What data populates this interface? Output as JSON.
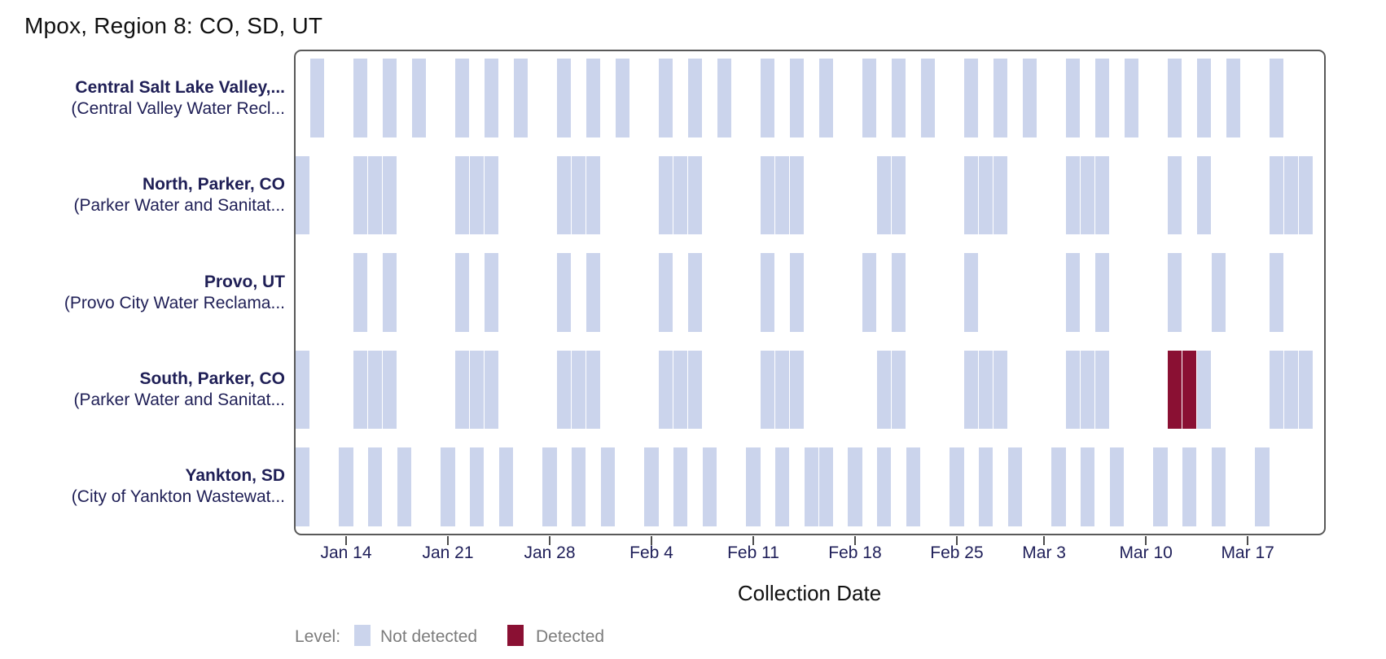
{
  "title": "Mpox, Region 8: CO, SD, UT",
  "legend": {
    "title": "Level:",
    "entries": [
      {
        "label": "Not detected",
        "color": "#cbd4ec"
      },
      {
        "label": "Detected",
        "color": "#8a1033"
      }
    ]
  },
  "chart_data": {
    "type": "heatmap",
    "subtype": "detection-tile-timeline",
    "title": "Mpox, Region 8: CO, SD, UT",
    "xlabel": "Collection Date",
    "x_domain": [
      "Jan 10",
      "Mar 22"
    ],
    "x_ticks": [
      {
        "label": "Jan 14",
        "t": 0
      },
      {
        "label": "Jan 21",
        "t": 7
      },
      {
        "label": "Jan 28",
        "t": 14
      },
      {
        "label": "Feb 4",
        "t": 21
      },
      {
        "label": "Feb 11",
        "t": 28
      },
      {
        "label": "Feb 18",
        "t": 35
      },
      {
        "label": "Feb 25",
        "t": 42
      },
      {
        "label": "Mar 3",
        "t": 48
      },
      {
        "label": "Mar 10",
        "t": 55
      },
      {
        "label": "Mar 17",
        "t": 62
      }
    ],
    "status_legend": {
      "nd": "Not detected",
      "d": "Detected"
    },
    "series": [
      {
        "site": "Central Salt Lake Valley,...",
        "facility": "(Central Valley Water Recl...",
        "samples": [
          [
            "Jan 12",
            -2,
            "nd"
          ],
          [
            "Jan 15",
            1,
            "nd"
          ],
          [
            "Jan 17",
            3,
            "nd"
          ],
          [
            "Jan 19",
            5,
            "nd"
          ],
          [
            "Jan 22",
            8,
            "nd"
          ],
          [
            "Jan 24",
            10,
            "nd"
          ],
          [
            "Jan 26",
            12,
            "nd"
          ],
          [
            "Jan 29",
            15,
            "nd"
          ],
          [
            "Jan 31",
            17,
            "nd"
          ],
          [
            "Feb 2",
            19,
            "nd"
          ],
          [
            "Feb 5",
            22,
            "nd"
          ],
          [
            "Feb 7",
            24,
            "nd"
          ],
          [
            "Feb 9",
            26,
            "nd"
          ],
          [
            "Feb 12",
            29,
            "nd"
          ],
          [
            "Feb 14",
            31,
            "nd"
          ],
          [
            "Feb 16",
            33,
            "nd"
          ],
          [
            "Feb 19",
            36,
            "nd"
          ],
          [
            "Feb 21",
            38,
            "nd"
          ],
          [
            "Feb 23",
            40,
            "nd"
          ],
          [
            "Feb 26",
            43,
            "nd"
          ],
          [
            "Feb 28",
            45,
            "nd"
          ],
          [
            "Mar 2",
            47,
            "nd"
          ],
          [
            "Mar 5",
            50,
            "nd"
          ],
          [
            "Mar 7",
            52,
            "nd"
          ],
          [
            "Mar 9",
            54,
            "nd"
          ],
          [
            "Mar 12",
            57,
            "nd"
          ],
          [
            "Mar 14",
            59,
            "nd"
          ],
          [
            "Mar 16",
            61,
            "nd"
          ],
          [
            "Mar 19",
            64,
            "nd"
          ]
        ]
      },
      {
        "site": "North, Parker, CO",
        "facility": "(Parker Water and Sanitat...",
        "samples": [
          [
            "Jan 11",
            -3,
            "nd"
          ],
          [
            "Jan 15",
            1,
            "nd"
          ],
          [
            "Jan 16",
            2,
            "nd"
          ],
          [
            "Jan 17",
            3,
            "nd"
          ],
          [
            "Jan 22",
            8,
            "nd"
          ],
          [
            "Jan 23",
            9,
            "nd"
          ],
          [
            "Jan 24",
            10,
            "nd"
          ],
          [
            "Jan 29",
            15,
            "nd"
          ],
          [
            "Jan 30",
            16,
            "nd"
          ],
          [
            "Jan 31",
            17,
            "nd"
          ],
          [
            "Feb 5",
            22,
            "nd"
          ],
          [
            "Feb 6",
            23,
            "nd"
          ],
          [
            "Feb 7",
            24,
            "nd"
          ],
          [
            "Feb 12",
            29,
            "nd"
          ],
          [
            "Feb 13",
            30,
            "nd"
          ],
          [
            "Feb 14",
            31,
            "nd"
          ],
          [
            "Feb 20",
            37,
            "nd"
          ],
          [
            "Feb 21",
            38,
            "nd"
          ],
          [
            "Feb 26",
            43,
            "nd"
          ],
          [
            "Feb 27",
            44,
            "nd"
          ],
          [
            "Feb 28",
            45,
            "nd"
          ],
          [
            "Mar 5",
            50,
            "nd"
          ],
          [
            "Mar 6",
            51,
            "nd"
          ],
          [
            "Mar 7",
            52,
            "nd"
          ],
          [
            "Mar 12",
            57,
            "nd"
          ],
          [
            "Mar 14",
            59,
            "nd"
          ],
          [
            "Mar 19",
            64,
            "nd"
          ],
          [
            "Mar 20",
            65,
            "nd"
          ],
          [
            "Mar 21",
            66,
            "nd"
          ]
        ]
      },
      {
        "site": "Provo, UT",
        "facility": "(Provo City Water Reclama...",
        "samples": [
          [
            "Jan 15",
            1,
            "nd"
          ],
          [
            "Jan 17",
            3,
            "nd"
          ],
          [
            "Jan 22",
            8,
            "nd"
          ],
          [
            "Jan 24",
            10,
            "nd"
          ],
          [
            "Jan 29",
            15,
            "nd"
          ],
          [
            "Jan 31",
            17,
            "nd"
          ],
          [
            "Feb 5",
            22,
            "nd"
          ],
          [
            "Feb 7",
            24,
            "nd"
          ],
          [
            "Feb 12",
            29,
            "nd"
          ],
          [
            "Feb 14",
            31,
            "nd"
          ],
          [
            "Feb 19",
            36,
            "nd"
          ],
          [
            "Feb 21",
            38,
            "nd"
          ],
          [
            "Feb 26",
            43,
            "nd"
          ],
          [
            "Mar 5",
            50,
            "nd"
          ],
          [
            "Mar 7",
            52,
            "nd"
          ],
          [
            "Mar 12",
            57,
            "nd"
          ],
          [
            "Mar 15",
            60,
            "nd"
          ],
          [
            "Mar 19",
            64,
            "nd"
          ]
        ]
      },
      {
        "site": "South, Parker, CO",
        "facility": "(Parker Water and Sanitat...",
        "samples": [
          [
            "Jan 11",
            -3,
            "nd"
          ],
          [
            "Jan 15",
            1,
            "nd"
          ],
          [
            "Jan 16",
            2,
            "nd"
          ],
          [
            "Jan 17",
            3,
            "nd"
          ],
          [
            "Jan 22",
            8,
            "nd"
          ],
          [
            "Jan 23",
            9,
            "nd"
          ],
          [
            "Jan 24",
            10,
            "nd"
          ],
          [
            "Jan 29",
            15,
            "nd"
          ],
          [
            "Jan 30",
            16,
            "nd"
          ],
          [
            "Jan 31",
            17,
            "nd"
          ],
          [
            "Feb 5",
            22,
            "nd"
          ],
          [
            "Feb 6",
            23,
            "nd"
          ],
          [
            "Feb 7",
            24,
            "nd"
          ],
          [
            "Feb 12",
            29,
            "nd"
          ],
          [
            "Feb 13",
            30,
            "nd"
          ],
          [
            "Feb 14",
            31,
            "nd"
          ],
          [
            "Feb 20",
            37,
            "nd"
          ],
          [
            "Feb 21",
            38,
            "nd"
          ],
          [
            "Feb 26",
            43,
            "nd"
          ],
          [
            "Feb 27",
            44,
            "nd"
          ],
          [
            "Feb 28",
            45,
            "nd"
          ],
          [
            "Mar 5",
            50,
            "nd"
          ],
          [
            "Mar 6",
            51,
            "nd"
          ],
          [
            "Mar 7",
            52,
            "nd"
          ],
          [
            "Mar 12",
            57,
            "d"
          ],
          [
            "Mar 13",
            58,
            "d"
          ],
          [
            "Mar 14",
            59,
            "nd"
          ],
          [
            "Mar 19",
            64,
            "nd"
          ],
          [
            "Mar 20",
            65,
            "nd"
          ],
          [
            "Mar 21",
            66,
            "nd"
          ]
        ]
      },
      {
        "site": "Yankton, SD",
        "facility": "(City of Yankton Wastewat...",
        "samples": [
          [
            "Jan 11",
            -3,
            "nd"
          ],
          [
            "Jan 14",
            0,
            "nd"
          ],
          [
            "Jan 16",
            2,
            "nd"
          ],
          [
            "Jan 18",
            4,
            "nd"
          ],
          [
            "Jan 21",
            7,
            "nd"
          ],
          [
            "Jan 23",
            9,
            "nd"
          ],
          [
            "Jan 25",
            11,
            "nd"
          ],
          [
            "Jan 28",
            14,
            "nd"
          ],
          [
            "Jan 30",
            16,
            "nd"
          ],
          [
            "Feb 1",
            18,
            "nd"
          ],
          [
            "Feb 4",
            21,
            "nd"
          ],
          [
            "Feb 6",
            23,
            "nd"
          ],
          [
            "Feb 8",
            25,
            "nd"
          ],
          [
            "Feb 11",
            28,
            "nd"
          ],
          [
            "Feb 13",
            30,
            "nd"
          ],
          [
            "Feb 15",
            32,
            "nd"
          ],
          [
            "Feb 16",
            33,
            "nd"
          ],
          [
            "Feb 18",
            35,
            "nd"
          ],
          [
            "Feb 20",
            37,
            "nd"
          ],
          [
            "Feb 22",
            39,
            "nd"
          ],
          [
            "Feb 25",
            42,
            "nd"
          ],
          [
            "Feb 27",
            44,
            "nd"
          ],
          [
            "Mar 1",
            46,
            "nd"
          ],
          [
            "Mar 4",
            49,
            "nd"
          ],
          [
            "Mar 6",
            51,
            "nd"
          ],
          [
            "Mar 8",
            53,
            "nd"
          ],
          [
            "Mar 11",
            56,
            "nd"
          ],
          [
            "Mar 13",
            58,
            "nd"
          ],
          [
            "Mar 15",
            60,
            "nd"
          ],
          [
            "Mar 18",
            63,
            "nd"
          ]
        ]
      }
    ]
  }
}
